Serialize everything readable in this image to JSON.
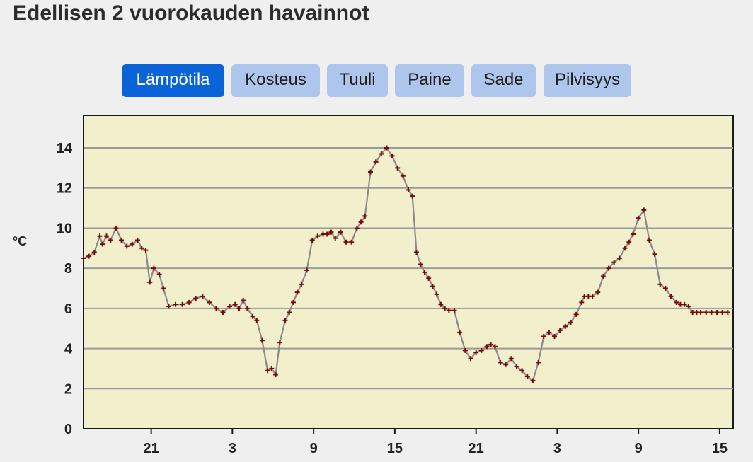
{
  "page": {
    "title": "Edellisen 2 vuorokauden havainnot"
  },
  "tabs": [
    {
      "label": "Lämpötila",
      "active": true
    },
    {
      "label": "Kosteus",
      "active": false
    },
    {
      "label": "Tuuli",
      "active": false
    },
    {
      "label": "Paine",
      "active": false
    },
    {
      "label": "Sade",
      "active": false
    },
    {
      "label": "Pilvisyys",
      "active": false
    }
  ],
  "colors": {
    "active_tab": "#0a64d8",
    "inactive_tab": "#aec6ec",
    "plot_background": "#f2f0cc",
    "series_marker": "#7a0a0a",
    "series_line": "#8a8a8a",
    "grid": "#9a9a9a"
  },
  "chart_data": {
    "type": "line",
    "title": "",
    "xlabel": "",
    "ylabel": "°C",
    "ylim": [
      0,
      15
    ],
    "xlim": [
      16,
      64
    ],
    "yticks": [
      0,
      2,
      4,
      6,
      8,
      10,
      12,
      14
    ],
    "xticks": [
      {
        "x": 21,
        "label": "21"
      },
      {
        "x": 27,
        "label": "3"
      },
      {
        "x": 33,
        "label": "9"
      },
      {
        "x": 39,
        "label": "15"
      },
      {
        "x": 45,
        "label": "21"
      },
      {
        "x": 51,
        "label": "3"
      },
      {
        "x": 57,
        "label": "9"
      },
      {
        "x": 63,
        "label": "15"
      }
    ],
    "grid": true,
    "series": [
      {
        "name": "",
        "x": [
          16.0,
          16.4,
          16.8,
          17.2,
          17.4,
          17.7,
          18.0,
          18.4,
          18.8,
          19.2,
          19.6,
          20.0,
          20.3,
          20.6,
          20.9,
          21.2,
          21.6,
          21.9,
          22.3,
          22.8,
          23.3,
          23.8,
          24.3,
          24.8,
          25.3,
          25.8,
          26.3,
          26.8,
          27.2,
          27.5,
          27.8,
          28.1,
          28.5,
          28.8,
          29.2,
          29.6,
          29.9,
          30.2,
          30.5,
          30.9,
          31.2,
          31.5,
          31.8,
          32.1,
          32.5,
          32.9,
          33.3,
          33.7,
          34.0,
          34.3,
          34.6,
          35.0,
          35.4,
          35.8,
          36.2,
          36.5,
          36.8,
          37.2,
          37.6,
          38.0,
          38.4,
          38.8,
          39.2,
          39.6,
          40.0,
          40.3,
          40.6,
          40.9,
          41.2,
          41.5,
          41.8,
          42.1,
          42.4,
          42.7,
          43.0,
          43.4,
          43.8,
          44.2,
          44.6,
          45.0,
          45.4,
          45.8,
          46.1,
          46.4,
          46.8,
          47.2,
          47.6,
          48.0,
          48.4,
          48.8,
          49.2,
          49.6,
          50.0,
          50.4,
          50.8,
          51.2,
          51.6,
          52.0,
          52.4,
          52.8,
          53.0,
          53.3,
          53.6,
          54.0,
          54.4,
          54.8,
          55.2,
          55.6,
          56.0,
          56.3,
          56.6,
          57.0,
          57.4,
          57.8,
          58.2,
          58.6,
          59.0,
          59.4,
          59.8,
          60.1,
          60.4,
          60.7,
          61.0,
          61.3,
          61.6,
          62.0,
          62.4,
          62.8,
          63.2,
          63.6
        ],
        "values": [
          8.5,
          8.6,
          8.8,
          9.6,
          9.2,
          9.6,
          9.4,
          10.0,
          9.4,
          9.1,
          9.2,
          9.4,
          9.0,
          8.9,
          7.3,
          8.0,
          7.7,
          7.0,
          6.1,
          6.2,
          6.2,
          6.3,
          6.5,
          6.6,
          6.3,
          6.0,
          5.8,
          6.1,
          6.2,
          6.0,
          6.4,
          6.0,
          5.6,
          5.4,
          4.4,
          2.9,
          3.0,
          2.7,
          4.3,
          5.4,
          5.8,
          6.3,
          6.8,
          7.2,
          7.9,
          9.4,
          9.6,
          9.7,
          9.7,
          9.8,
          9.5,
          9.8,
          9.3,
          9.3,
          10.0,
          10.3,
          10.6,
          12.8,
          13.3,
          13.7,
          14.0,
          13.6,
          13.0,
          12.6,
          11.9,
          11.6,
          8.8,
          8.2,
          7.8,
          7.5,
          7.1,
          6.7,
          6.2,
          6.0,
          5.9,
          5.9,
          4.8,
          3.9,
          3.5,
          3.8,
          3.9,
          4.1,
          4.2,
          4.1,
          3.3,
          3.2,
          3.5,
          3.1,
          2.9,
          2.6,
          2.4,
          3.3,
          4.6,
          4.8,
          4.6,
          4.9,
          5.1,
          5.3,
          5.7,
          6.3,
          6.6,
          6.6,
          6.6,
          6.8,
          7.6,
          8.0,
          8.3,
          8.5,
          9.0,
          9.3,
          9.7,
          10.5,
          10.9,
          9.4,
          8.7,
          7.2,
          7.0,
          6.6,
          6.3,
          6.2,
          6.2,
          6.1,
          5.8,
          5.8,
          5.8,
          5.8,
          5.8,
          5.8,
          5.8,
          5.8
        ]
      }
    ]
  }
}
